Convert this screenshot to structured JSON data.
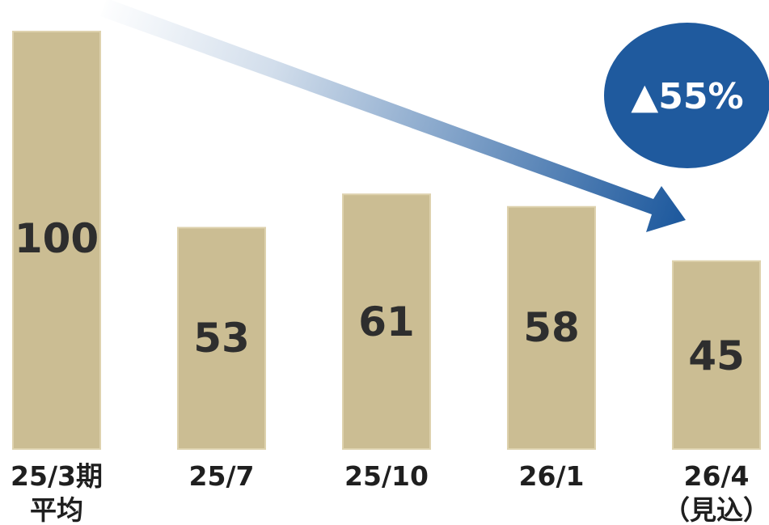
{
  "chart_data": {
    "type": "bar",
    "categories": [
      "25/3期\n平均",
      "25/7",
      "25/10",
      "26/1",
      "26/4\n（見込）"
    ],
    "values": [
      100,
      53,
      61,
      58,
      45
    ],
    "title": "",
    "xlabel": "",
    "ylabel": "",
    "ylim": [
      0,
      100
    ],
    "grid": false,
    "annotation": "▲55%",
    "colors": {
      "bar": "#cbbd93",
      "arrow": "#1f5a9e",
      "badge": "#1f5a9e",
      "value_text": "#2e2e2e"
    }
  }
}
